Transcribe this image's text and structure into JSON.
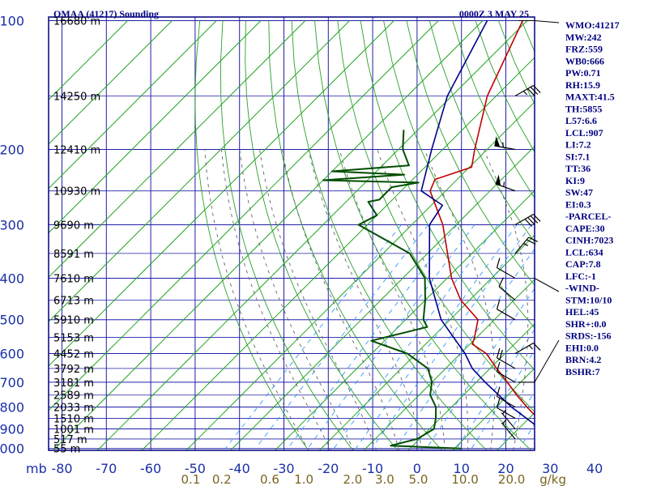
{
  "header": {
    "station": "OMAA (41217) Sounding",
    "time": "0000Z  3 MAY 25"
  },
  "colors": {
    "frame": "#000080",
    "grid": "#2020a8",
    "isotherm": "#1fa51f",
    "dry_adiabat": "#2aa02a",
    "moist_adiabat": "#666666",
    "mixing_ratio": "#3399ff",
    "temperature": "#c00000",
    "dewpoint": "#004d00",
    "parcel": "#00008b",
    "text": "#000080"
  },
  "indices": [
    "WMO:41217",
    "MW:242",
    "FRZ:559",
    "WB0:666",
    "PW:0.71",
    "RH:15.9",
    "MAXT:41.5",
    "TH:5855",
    "L57:6.6",
    "LCL:907",
    "LI:7.2",
    "SI:7.1",
    "TT:36",
    "KI:9",
    "SW:47",
    "EI:0.3",
    "-PARCEL-",
    "CAPE:30",
    "CINH:7023",
    "LCL:634",
    "CAP:7.8",
    "LFC:-1",
    "-WIND-",
    "STM:10/10",
    "HEL:45",
    "SHR+:0.0",
    "SRDS:-156",
    "EHI:0.0",
    "BRN:4.2",
    "BSHR:7"
  ],
  "chart_data": {
    "type": "line",
    "title": "OMAA (41217) Sounding",
    "subtitle": "0000Z  3 MAY 25",
    "xlabel": "",
    "ylabel": "mb",
    "x_unit_label": "g/kg",
    "xlim": [
      -80,
      40
    ],
    "ylim": [
      1000,
      100
    ],
    "pressure_ticks": [
      100,
      200,
      300,
      400,
      500,
      600,
      700,
      800,
      900,
      1000
    ],
    "temperature_ticks": [
      -80,
      -70,
      -60,
      -50,
      -40,
      -30,
      -20,
      -10,
      0,
      10,
      20,
      30,
      40
    ],
    "temperature_tick_labels": [
      "-80",
      "-70",
      "-60",
      "-50",
      "-40",
      "-30",
      "-20",
      "-10",
      "0",
      "10",
      "20",
      "30",
      "40"
    ],
    "mixing_ratio_labels": [
      "0.1",
      "0.2",
      "0.6",
      "1.0",
      "2.0",
      "3.0",
      "5.0",
      "10.0",
      "20.0",
      "g/kg"
    ],
    "mixing_ratio_label_temps": [
      -51,
      -44,
      -33.2,
      -25.5,
      -14.5,
      -7.3,
      0.3,
      10.8,
      21.3,
      30.6
    ],
    "height_labels": [
      {
        "p": 100,
        "label": "16680 m"
      },
      {
        "p": 150,
        "label": "14250 m"
      },
      {
        "p": 200,
        "label": "12410 m"
      },
      {
        "p": 250,
        "label": "10930 m"
      },
      {
        "p": 300,
        "label": "9690 m"
      },
      {
        "p": 350,
        "label": "8591 m"
      },
      {
        "p": 400,
        "label": "7610 m"
      },
      {
        "p": 450,
        "label": "6713 m"
      },
      {
        "p": 500,
        "label": "5910 m"
      },
      {
        "p": 550,
        "label": "5153 m"
      },
      {
        "p": 600,
        "label": "4452 m"
      },
      {
        "p": 650,
        "label": "3792 m"
      },
      {
        "p": 700,
        "label": "3181 m"
      },
      {
        "p": 750,
        "label": "2589 m"
      },
      {
        "p": 800,
        "label": "2033 m"
      },
      {
        "p": 850,
        "label": "1510 m"
      },
      {
        "p": 900,
        "label": "1001 m"
      },
      {
        "p": 950,
        "label": "517 m"
      },
      {
        "p": 1000,
        "label": "55 m"
      }
    ],
    "series": [
      {
        "name": "",
        "role": "temperature",
        "points": [
          {
            "p": 100,
            "t": -71
          },
          {
            "p": 150,
            "t": -62
          },
          {
            "p": 200,
            "t": -52.8
          },
          {
            "p": 220,
            "t": -49.5
          },
          {
            "p": 235,
            "t": -55
          },
          {
            "p": 250,
            "t": -53.5
          },
          {
            "p": 300,
            "t": -43
          },
          {
            "p": 350,
            "t": -35.5
          },
          {
            "p": 400,
            "t": -29
          },
          {
            "p": 450,
            "t": -22
          },
          {
            "p": 500,
            "t": -13.7
          },
          {
            "p": 550,
            "t": -10.5
          },
          {
            "p": 570,
            "t": -9.5
          },
          {
            "p": 600,
            "t": -4.2
          },
          {
            "p": 650,
            "t": 1.5
          },
          {
            "p": 700,
            "t": 7
          },
          {
            "p": 750,
            "t": 12
          },
          {
            "p": 800,
            "t": 17
          },
          {
            "p": 850,
            "t": 22
          },
          {
            "p": 900,
            "t": 27.5
          },
          {
            "p": 930,
            "t": 34
          },
          {
            "p": 965,
            "t": 36.8
          },
          {
            "p": 1000,
            "t": 33.3
          }
        ]
      },
      {
        "name": "",
        "role": "dewpoint",
        "points": [
          {
            "p": 180,
            "t": -73.2
          },
          {
            "p": 200,
            "t": -69
          },
          {
            "p": 218,
            "t": -64
          },
          {
            "p": 225,
            "t": -80
          },
          {
            "p": 229,
            "t": -63
          },
          {
            "p": 236,
            "t": -80
          },
          {
            "p": 239,
            "t": -58
          },
          {
            "p": 245,
            "t": -63
          },
          {
            "p": 262,
            "t": -63
          },
          {
            "p": 265,
            "t": -65
          },
          {
            "p": 285,
            "t": -60
          },
          {
            "p": 300,
            "t": -62
          },
          {
            "p": 350,
            "t": -44
          },
          {
            "p": 400,
            "t": -35
          },
          {
            "p": 450,
            "t": -30
          },
          {
            "p": 500,
            "t": -26
          },
          {
            "p": 520,
            "t": -23.5
          },
          {
            "p": 560,
            "t": -33
          },
          {
            "p": 600,
            "t": -22
          },
          {
            "p": 650,
            "t": -14
          },
          {
            "p": 700,
            "t": -10
          },
          {
            "p": 750,
            "t": -7.5
          },
          {
            "p": 800,
            "t": -3.5
          },
          {
            "p": 850,
            "t": -1
          },
          {
            "p": 900,
            "t": 1
          },
          {
            "p": 950,
            "t": -0.5
          },
          {
            "p": 985,
            "t": -5
          },
          {
            "p": 1000,
            "t": 11.5
          }
        ]
      },
      {
        "name": "",
        "role": "parcel",
        "points": [
          {
            "p": 100,
            "t": -79
          },
          {
            "p": 150,
            "t": -71
          },
          {
            "p": 200,
            "t": -62.5
          },
          {
            "p": 250,
            "t": -55.5
          },
          {
            "p": 270,
            "t": -47.5
          },
          {
            "p": 300,
            "t": -46
          },
          {
            "p": 400,
            "t": -34
          },
          {
            "p": 500,
            "t": -22
          },
          {
            "p": 600,
            "t": -9
          },
          {
            "p": 650,
            "t": -4
          },
          {
            "p": 700,
            "t": 2
          },
          {
            "p": 800,
            "t": 13.5
          },
          {
            "p": 900,
            "t": 25
          },
          {
            "p": 1000,
            "t": 37
          }
        ]
      }
    ],
    "wind_barbs": [
      {
        "p": 150,
        "dir": 60,
        "speed": 35
      },
      {
        "p": 200,
        "dir": 280,
        "speed": 55
      },
      {
        "p": 250,
        "dir": 290,
        "speed": 55
      },
      {
        "p": 300,
        "dir": 60,
        "speed": 40
      },
      {
        "p": 350,
        "dir": 40,
        "speed": 25
      },
      {
        "p": 400,
        "dir": 300,
        "speed": 10
      },
      {
        "p": 450,
        "dir": 310,
        "speed": 10
      },
      {
        "p": 500,
        "dir": 300,
        "speed": 10
      },
      {
        "p": 600,
        "dir": 60,
        "speed": 15
      },
      {
        "p": 650,
        "dir": 300,
        "speed": 20
      },
      {
        "p": 700,
        "dir": 300,
        "speed": 10
      },
      {
        "p": 800,
        "dir": 300,
        "speed": 10
      },
      {
        "p": 850,
        "dir": 300,
        "speed": 10
      },
      {
        "p": 900,
        "dir": 320,
        "speed": 5
      },
      {
        "p": 950,
        "dir": 320,
        "speed": 5
      }
    ],
    "grid": true,
    "legend": "none"
  }
}
